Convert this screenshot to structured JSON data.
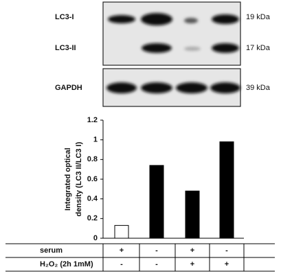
{
  "blot": {
    "bands": [
      "LC3-I",
      "LC3-II"
    ],
    "band_sizes": [
      "19 kDa",
      "17 kDa"
    ],
    "loading_control": "GAPDH",
    "loading_size": "39 kDa"
  },
  "chart_data": {
    "type": "bar",
    "y_label": [
      "Integrated optical",
      "density (LC3 II/LC3 I)"
    ],
    "categories": [
      null,
      null,
      null,
      null
    ],
    "values": [
      0.13,
      0.74,
      0.48,
      0.98
    ],
    "colors": [
      "#ffffff",
      "#000000",
      "#000000",
      "#000000"
    ],
    "edgecolor": "#000000",
    "ylim": [
      0,
      1.2
    ],
    "yticks": [
      0,
      0.2,
      0.4,
      0.6,
      0.8,
      1,
      1.2
    ],
    "grid": false
  },
  "table": {
    "rows": [
      [
        "serum",
        "+",
        "-",
        "+",
        "-"
      ],
      [
        "H₂O₂ (2h 1mM)",
        "-",
        "-",
        "+",
        "+"
      ]
    ]
  }
}
